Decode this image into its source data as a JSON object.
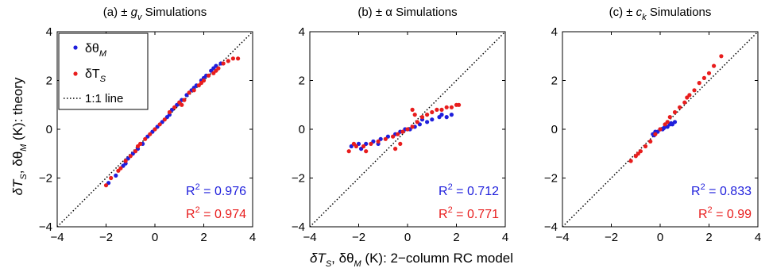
{
  "figure": {
    "shared_ylabel": {
      "a": "δT",
      "a_sub": "S",
      "b": ", δθ",
      "b_sub": "M",
      "c": " (K): theory"
    },
    "shared_xlabel": {
      "a": "δT",
      "a_sub": "S",
      "b": ", δθ",
      "b_sub": "M",
      "c": " (K): 2−column RC model"
    }
  },
  "legend": {
    "entries": [
      {
        "label": "δθ",
        "sub": "M",
        "color": "#1f1fdc"
      },
      {
        "label": "δT",
        "sub": "S",
        "color": "#e81d1d"
      },
      {
        "label": "1:1 line",
        "sub": "",
        "color": "#000000"
      }
    ]
  },
  "colors": {
    "blue": "#1f1fdc",
    "red": "#e81d1d"
  },
  "chart_data": [
    {
      "type": "scatter",
      "title": "(a) ± g_v Simulations",
      "title_parts": {
        "prefix": "(a) ± ",
        "sym": "g",
        "sub": "v",
        "suffix": " Simulations"
      },
      "xlim": [
        -4,
        4
      ],
      "ylim": [
        -4,
        4
      ],
      "xticks": [
        -4,
        -2,
        0,
        2,
        4
      ],
      "yticks": [
        -4,
        -2,
        0,
        2,
        4
      ],
      "reference_line": "1:1",
      "r2": [
        {
          "series": "δθ_M",
          "label": "R",
          "sup": "2",
          "value": " = 0.976"
        },
        {
          "series": "δT_S",
          "label": "R",
          "sup": "2",
          "value": " = 0.974"
        }
      ],
      "series": [
        {
          "name": "δθ_M",
          "color": "#1f1fdc",
          "points": [
            [
              -1.9,
              -2.2
            ],
            [
              -1.6,
              -1.9
            ],
            [
              -1.3,
              -1.5
            ],
            [
              -1.1,
              -1.2
            ],
            [
              -0.9,
              -1.0
            ],
            [
              -0.7,
              -0.8
            ],
            [
              -0.5,
              -0.6
            ],
            [
              -0.3,
              -0.3
            ],
            [
              -0.1,
              -0.1
            ],
            [
              0.1,
              0.1
            ],
            [
              0.3,
              0.3
            ],
            [
              0.5,
              0.5
            ],
            [
              0.7,
              0.8
            ],
            [
              0.9,
              1.0
            ],
            [
              1.1,
              1.2
            ],
            [
              1.3,
              1.4
            ],
            [
              1.5,
              1.6
            ],
            [
              1.7,
              1.8
            ],
            [
              1.9,
              2.0
            ],
            [
              2.1,
              2.2
            ],
            [
              2.3,
              2.4
            ],
            [
              2.5,
              2.6
            ],
            [
              2.7,
              2.7
            ],
            [
              -1.2,
              -1.4
            ],
            [
              -0.8,
              -0.9
            ],
            [
              0.6,
              0.6
            ],
            [
              1.0,
              1.1
            ],
            [
              1.6,
              1.7
            ],
            [
              2.0,
              2.1
            ],
            [
              2.4,
              2.5
            ]
          ]
        },
        {
          "name": "δT_S",
          "color": "#e81d1d",
          "points": [
            [
              -2.0,
              -2.3
            ],
            [
              -1.8,
              -2.0
            ],
            [
              -1.5,
              -1.7
            ],
            [
              -1.2,
              -1.3
            ],
            [
              -1.0,
              -1.1
            ],
            [
              -0.8,
              -0.9
            ],
            [
              -0.6,
              -0.6
            ],
            [
              -0.4,
              -0.4
            ],
            [
              -0.2,
              -0.2
            ],
            [
              0.0,
              0.0
            ],
            [
              0.2,
              0.2
            ],
            [
              0.4,
              0.4
            ],
            [
              0.6,
              0.7
            ],
            [
              0.8,
              0.9
            ],
            [
              1.0,
              1.1
            ],
            [
              1.2,
              1.2
            ],
            [
              1.4,
              1.5
            ],
            [
              1.6,
              1.6
            ],
            [
              1.8,
              1.8
            ],
            [
              2.0,
              2.0
            ],
            [
              2.2,
              2.2
            ],
            [
              2.4,
              2.3
            ],
            [
              2.6,
              2.5
            ],
            [
              2.8,
              2.7
            ],
            [
              3.0,
              2.8
            ],
            [
              3.2,
              2.9
            ],
            [
              3.4,
              2.9
            ],
            [
              -1.4,
              -1.6
            ],
            [
              -0.7,
              -0.7
            ],
            [
              1.1,
              1.0
            ],
            [
              1.9,
              1.9
            ],
            [
              2.5,
              2.4
            ]
          ]
        }
      ]
    },
    {
      "type": "scatter",
      "title": "(b) ± α Simulations",
      "title_parts": {
        "prefix": "(b) ± α ",
        "sym": "",
        "sub": "",
        "suffix": " Simulations"
      },
      "xlim": [
        -4,
        4
      ],
      "ylim": [
        -4,
        4
      ],
      "xticks": [
        -4,
        -2,
        0,
        2,
        4
      ],
      "yticks": [
        -4,
        -2,
        0,
        2,
        4
      ],
      "reference_line": "1:1",
      "r2": [
        {
          "series": "δθ_M",
          "label": "R",
          "sup": "2",
          "value": " = 0.712"
        },
        {
          "series": "δT_S",
          "label": "R",
          "sup": "2",
          "value": " = 0.771"
        }
      ],
      "series": [
        {
          "name": "δθ_M",
          "color": "#1f1fdc",
          "points": [
            [
              -2.3,
              -0.7
            ],
            [
              -2.0,
              -0.6
            ],
            [
              -1.7,
              -0.6
            ],
            [
              -1.4,
              -0.5
            ],
            [
              -1.1,
              -0.4
            ],
            [
              -0.8,
              -0.3
            ],
            [
              -0.5,
              -0.2
            ],
            [
              -0.3,
              -0.1
            ],
            [
              -0.1,
              0.0
            ],
            [
              0.1,
              0.0
            ],
            [
              0.3,
              0.1
            ],
            [
              0.5,
              0.2
            ],
            [
              0.8,
              0.3
            ],
            [
              1.0,
              0.4
            ],
            [
              1.3,
              0.5
            ],
            [
              1.6,
              0.5
            ],
            [
              1.8,
              0.6
            ],
            [
              -1.9,
              -0.8
            ],
            [
              -1.2,
              -0.6
            ],
            [
              0.6,
              0.4
            ],
            [
              1.4,
              0.6
            ]
          ]
        },
        {
          "name": "δT_S",
          "color": "#e81d1d",
          "points": [
            [
              -2.4,
              -0.9
            ],
            [
              -2.1,
              -0.7
            ],
            [
              -1.8,
              -0.7
            ],
            [
              -1.5,
              -0.6
            ],
            [
              -1.2,
              -0.5
            ],
            [
              -0.9,
              -0.4
            ],
            [
              -0.6,
              -0.3
            ],
            [
              -0.4,
              -0.2
            ],
            [
              -0.2,
              -0.1
            ],
            [
              0.0,
              0.0
            ],
            [
              0.2,
              0.1
            ],
            [
              0.4,
              0.3
            ],
            [
              0.6,
              0.5
            ],
            [
              0.8,
              0.6
            ],
            [
              1.0,
              0.7
            ],
            [
              1.2,
              0.8
            ],
            [
              1.4,
              0.8
            ],
            [
              1.6,
              0.9
            ],
            [
              1.8,
              0.9
            ],
            [
              2.0,
              1.0
            ],
            [
              2.1,
              1.0
            ],
            [
              0.2,
              0.8
            ],
            [
              0.3,
              0.6
            ],
            [
              -0.3,
              -0.6
            ],
            [
              -0.5,
              -0.8
            ],
            [
              -1.7,
              -0.9
            ],
            [
              -2.2,
              -0.6
            ]
          ]
        }
      ]
    },
    {
      "type": "scatter",
      "title": "(c) ± c_k Simulations",
      "title_parts": {
        "prefix": "(c) ± ",
        "sym": "c",
        "sub": "k",
        "suffix": " Simulations"
      },
      "xlim": [
        -4,
        4
      ],
      "ylim": [
        -4,
        4
      ],
      "xticks": [
        -4,
        -2,
        0,
        2,
        4
      ],
      "yticks": [
        -4,
        -2,
        0,
        2,
        4
      ],
      "reference_line": "1:1",
      "r2": [
        {
          "series": "δθ_M",
          "label": "R",
          "sup": "2",
          "value": " = 0.833"
        },
        {
          "series": "δT_S",
          "label": "R",
          "sup": "2",
          "value": " = 0.99"
        }
      ],
      "series": [
        {
          "name": "δθ_M",
          "color": "#1f1fdc",
          "points": [
            [
              -0.3,
              -0.2
            ],
            [
              -0.2,
              -0.1
            ],
            [
              -0.1,
              -0.1
            ],
            [
              0.0,
              0.0
            ],
            [
              0.1,
              0.0
            ],
            [
              0.2,
              0.1
            ],
            [
              0.3,
              0.1
            ],
            [
              0.4,
              0.2
            ],
            [
              0.5,
              0.2
            ],
            [
              0.6,
              0.3
            ],
            [
              -0.25,
              -0.25
            ],
            [
              0.15,
              0.05
            ],
            [
              0.45,
              0.25
            ]
          ]
        },
        {
          "name": "δT_S",
          "color": "#e81d1d",
          "points": [
            [
              -1.2,
              -1.3
            ],
            [
              -1.0,
              -1.1
            ],
            [
              -0.8,
              -0.9
            ],
            [
              -0.6,
              -0.7
            ],
            [
              -0.4,
              -0.5
            ],
            [
              -0.2,
              -0.2
            ],
            [
              0.0,
              0.0
            ],
            [
              0.2,
              0.2
            ],
            [
              0.4,
              0.5
            ],
            [
              0.6,
              0.7
            ],
            [
              0.8,
              0.9
            ],
            [
              1.0,
              1.1
            ],
            [
              1.2,
              1.4
            ],
            [
              1.4,
              1.6
            ],
            [
              1.6,
              1.9
            ],
            [
              1.8,
              2.1
            ],
            [
              2.0,
              2.3
            ],
            [
              2.2,
              2.6
            ],
            [
              2.5,
              3.0
            ],
            [
              -0.9,
              -1.0
            ],
            [
              0.3,
              0.3
            ],
            [
              1.1,
              1.3
            ]
          ]
        }
      ]
    }
  ]
}
